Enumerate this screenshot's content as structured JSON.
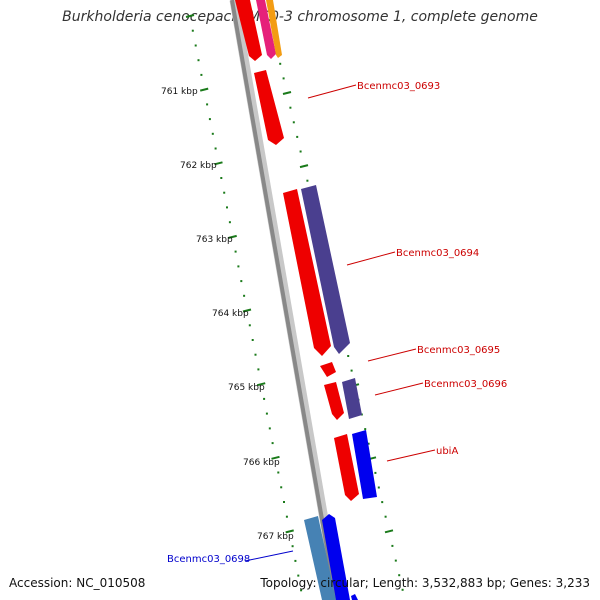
{
  "title": "Burkholderia cenocepacia MC0-3 chromosome 1, complete genome",
  "footer": {
    "accession": "Accession: NC_010508",
    "summary": "Topology: circular; Length: 3,532,883 bp; Genes: 3,233"
  },
  "ruler": {
    "tick_labels": [
      "761 kbp",
      "762 kbp",
      "763 kbp",
      "764 kbp",
      "765 kbp",
      "766 kbp",
      "767 kbp"
    ],
    "tick_color": "#1a7a1a"
  },
  "genes": [
    {
      "name": "Bcenmc03_0693",
      "color": "#cc0000",
      "strand": "outer"
    },
    {
      "name": "Bcenmc03_0694",
      "color": "#cc0000",
      "strand": "outer"
    },
    {
      "name": "Bcenmc03_0695",
      "color": "#cc0000",
      "strand": "outer"
    },
    {
      "name": "Bcenmc03_0696",
      "color": "#cc0000",
      "strand": "outer"
    },
    {
      "name": "ubiA",
      "color": "#cc0000",
      "strand": "outer"
    },
    {
      "name": "Bcenmc03_0698",
      "color": "#0000cc",
      "strand": "inner"
    }
  ],
  "colors": {
    "forward_cds": "#ee0000",
    "purple_cds": "#4a3f8f",
    "blue_cds": "#0000ee",
    "steelblue_cds": "#4682b4",
    "backbone": "#888888"
  }
}
